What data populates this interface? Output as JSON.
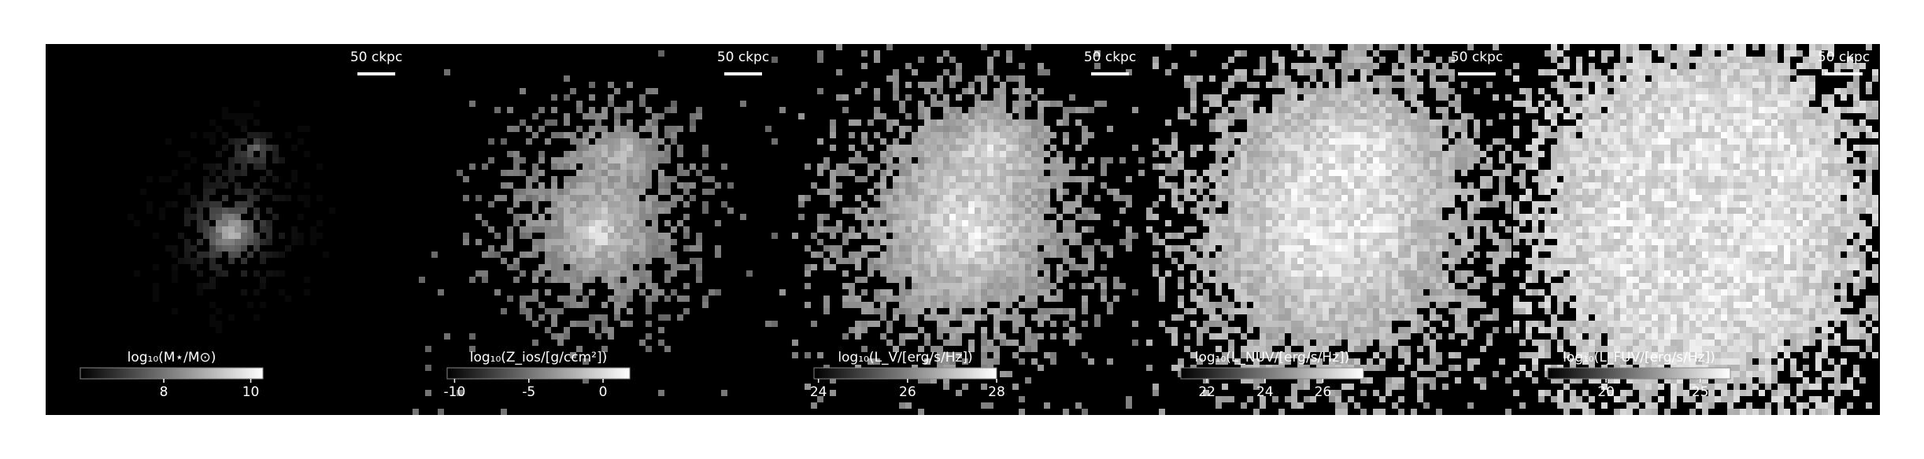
{
  "chart_data": [
    {
      "type": "image",
      "scale_label": "50 ckpc",
      "colorbar_label": "log₁₀(M⋆/M⊙)",
      "xlim": [
        6.08,
        10.28
      ],
      "xticks": [
        8,
        10
      ]
    },
    {
      "type": "image",
      "scale_label": "50 ckpc",
      "colorbar_label": "log₁₀(Z_ios/[g/ccm²])",
      "xlim": [
        -10.5,
        1.8
      ],
      "xticks": [
        -10,
        -5,
        0
      ]
    },
    {
      "type": "image",
      "scale_label": "50 ckpc",
      "colorbar_label": "log₁₀(L_V/[erg/s/Hz])",
      "xlim": [
        23.9,
        28.0
      ],
      "xticks": [
        24,
        26,
        28
      ]
    },
    {
      "type": "image",
      "scale_label": "50 ckpc",
      "colorbar_label": "log₁₀(L_NUV/[erg/s/Hz])",
      "xlim": [
        21.1,
        27.4
      ],
      "xticks": [
        22,
        24,
        26
      ]
    },
    {
      "type": "image",
      "scale_label": "50 ckpc",
      "colorbar_label": "log₁₀(L_FUV/[erg/s/Hz])",
      "xlim": [
        16.9,
        26.6
      ],
      "xticks": [
        20,
        25
      ]
    }
  ]
}
